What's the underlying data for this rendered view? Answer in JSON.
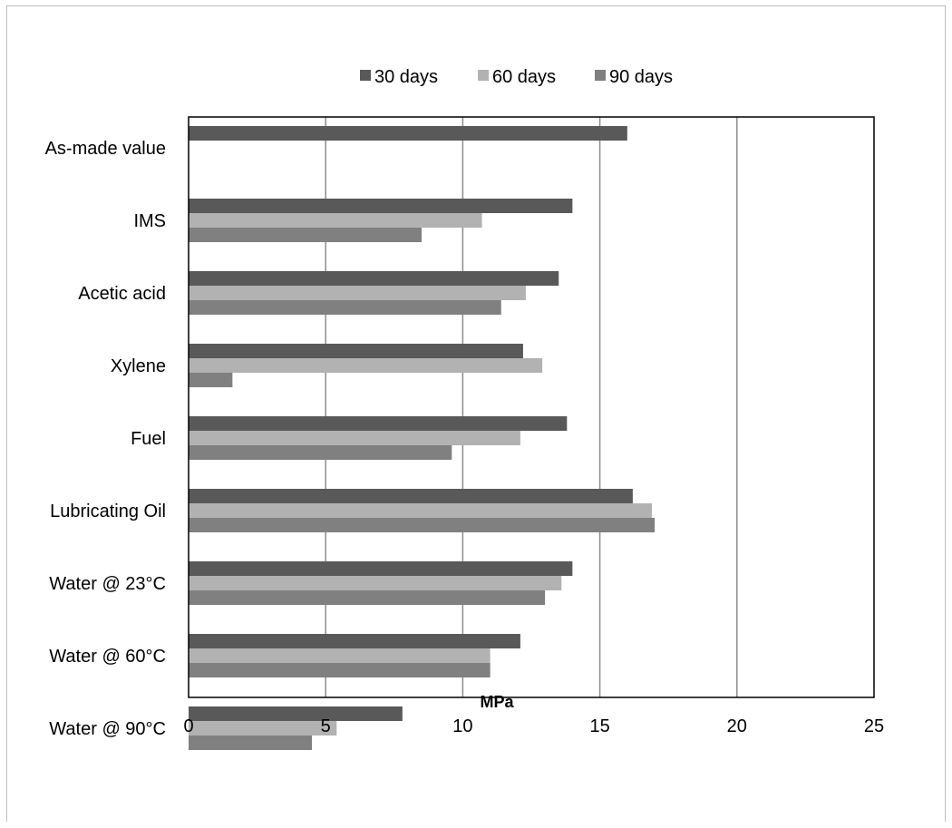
{
  "chart_data": {
    "type": "bar",
    "orientation": "horizontal",
    "categories": [
      "As-made value",
      "IMS",
      "Acetic acid",
      "Xylene",
      "Fuel",
      "Lubricating Oil",
      "Water @ 23°C",
      "Water @ 60°C",
      "Water @ 90°C"
    ],
    "series": [
      {
        "name": "30 days",
        "color": "#595959",
        "values": [
          16.0,
          14.0,
          13.5,
          12.2,
          13.8,
          16.2,
          14.0,
          12.1,
          7.8
        ]
      },
      {
        "name": "60 days",
        "color": "#b2b2b2",
        "values": [
          null,
          10.7,
          12.3,
          12.9,
          12.1,
          16.9,
          13.6,
          11.0,
          5.4
        ]
      },
      {
        "name": "90 days",
        "color": "#808080",
        "values": [
          null,
          8.5,
          11.4,
          1.6,
          9.6,
          17.0,
          13.0,
          11.0,
          4.5
        ]
      }
    ],
    "xlabel": "MPa",
    "ylabel": "",
    "xlim": [
      0,
      25
    ],
    "xticks": [
      "0",
      "5",
      "10",
      "15",
      "20",
      "25"
    ],
    "grid": "vertical",
    "legend": "top-center"
  }
}
